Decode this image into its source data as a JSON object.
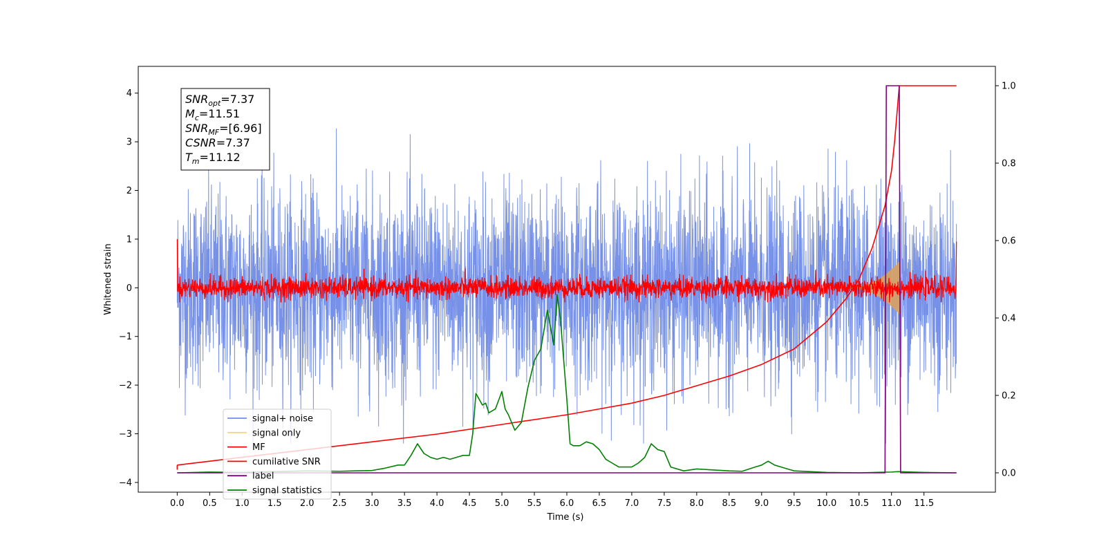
{
  "chart_data": {
    "type": "line",
    "xlabel": "Time (s)",
    "ylabel": "Whitened strain",
    "xlim": [
      -0.6,
      12.6
    ],
    "ylim": [
      -4.2,
      4.55
    ],
    "y2lim": [
      -0.05,
      1.05
    ],
    "x_ticks": [
      "0.0",
      "0.5",
      "1.0",
      "1.5",
      "2.0",
      "2.5",
      "3.0",
      "3.5",
      "4.0",
      "4.5",
      "5.0",
      "5.5",
      "6.0",
      "6.5",
      "7.0",
      "7.5",
      "8.0",
      "8.5",
      "9.0",
      "9.5",
      "10.0",
      "10.5",
      "11.0",
      "11.5"
    ],
    "y_ticks": [
      "−4",
      "−3",
      "−2",
      "−1",
      "0",
      "1",
      "2",
      "3",
      "4"
    ],
    "y2_ticks": [
      "0.0",
      "0.2",
      "0.4",
      "0.6",
      "0.8",
      "1.0"
    ],
    "legend": {
      "placement": "lower-left",
      "entries": [
        {
          "label": "signal+ noise",
          "color": "#6f8be6"
        },
        {
          "label": "signal only",
          "color": "#f5d28a"
        },
        {
          "label": "MF",
          "color": "#ff0000"
        },
        {
          "label": "cumilative SNR",
          "color": "#ff0000"
        },
        {
          "label": "label",
          "color": "#800080"
        },
        {
          "label": "signal statistics",
          "color": "#008000"
        }
      ]
    },
    "annotation": {
      "lines": [
        {
          "main": "SNR",
          "sub": "opt",
          "rest": "=7.37"
        },
        {
          "main": "M",
          "sub": "c",
          "rest": "=11.51"
        },
        {
          "main": "SNR",
          "sub": "MF",
          "rest": "=[6.96]"
        },
        {
          "main": "CSNR",
          "sub": "",
          "rest": "=7.37"
        },
        {
          "main": "T",
          "sub": "m",
          "rest": "=11.12"
        }
      ]
    },
    "series": [
      {
        "name": "signal+ noise",
        "axis": "left",
        "style": "noise",
        "x_range": [
          0.0,
          12.0
        ],
        "amplitude_range": [
          -3.2,
          4.15
        ]
      },
      {
        "name": "signal only",
        "axis": "left",
        "style": "envelope",
        "x_range": [
          10.3,
          11.12
        ],
        "peak_amplitude": 0.55
      },
      {
        "name": "MF",
        "axis": "left",
        "style": "noise-small",
        "x_range": [
          0.0,
          12.0
        ],
        "amplitude_range": [
          -0.3,
          0.45
        ]
      },
      {
        "name": "cumilative SNR",
        "axis": "right",
        "x": [
          0.0,
          0.5,
          1.0,
          2.0,
          3.0,
          4.0,
          5.0,
          6.0,
          6.5,
          7.0,
          7.5,
          8.0,
          8.5,
          9.0,
          9.5,
          10.0,
          10.3,
          10.5,
          10.7,
          10.9,
          11.0,
          11.05,
          11.12,
          11.5,
          12.0
        ],
        "y": [
          0.02,
          0.03,
          0.04,
          0.06,
          0.08,
          0.1,
          0.125,
          0.15,
          0.165,
          0.18,
          0.2,
          0.225,
          0.25,
          0.28,
          0.32,
          0.39,
          0.45,
          0.5,
          0.58,
          0.69,
          0.78,
          0.86,
          1.0,
          1.0,
          1.0
        ]
      },
      {
        "name": "label",
        "axis": "right",
        "x": [
          0.0,
          10.9,
          10.92,
          11.12,
          11.14,
          12.0
        ],
        "y": [
          0.0,
          0.0,
          1.0,
          1.0,
          0.0,
          0.0
        ]
      },
      {
        "name": "signal statistics",
        "axis": "right",
        "x": [
          0.0,
          0.5,
          1.0,
          1.5,
          2.0,
          2.5,
          3.0,
          3.2,
          3.4,
          3.5,
          3.6,
          3.7,
          3.8,
          3.9,
          4.0,
          4.1,
          4.2,
          4.3,
          4.4,
          4.5,
          4.55,
          4.6,
          4.7,
          4.75,
          4.8,
          4.9,
          5.0,
          5.05,
          5.1,
          5.2,
          5.3,
          5.4,
          5.5,
          5.6,
          5.7,
          5.8,
          5.85,
          5.9,
          6.0,
          6.05,
          6.1,
          6.2,
          6.3,
          6.4,
          6.5,
          6.6,
          6.7,
          6.8,
          7.0,
          7.1,
          7.2,
          7.3,
          7.4,
          7.5,
          7.6,
          7.8,
          8.0,
          8.2,
          8.5,
          8.7,
          8.9,
          9.0,
          9.1,
          9.2,
          9.3,
          9.5,
          10.0,
          10.5,
          11.0,
          11.1,
          11.5,
          12.0
        ],
        "y": [
          0.0,
          0.002,
          0.001,
          0.003,
          0.005,
          0.004,
          0.006,
          0.012,
          0.02,
          0.02,
          0.045,
          0.075,
          0.05,
          0.04,
          0.035,
          0.04,
          0.035,
          0.04,
          0.045,
          0.045,
          0.1,
          0.205,
          0.175,
          0.18,
          0.155,
          0.165,
          0.21,
          0.165,
          0.15,
          0.11,
          0.13,
          0.22,
          0.29,
          0.32,
          0.42,
          0.33,
          0.46,
          0.4,
          0.19,
          0.075,
          0.07,
          0.07,
          0.08,
          0.075,
          0.06,
          0.035,
          0.025,
          0.015,
          0.015,
          0.025,
          0.04,
          0.075,
          0.06,
          0.055,
          0.015,
          0.005,
          0.01,
          0.008,
          0.005,
          0.004,
          0.015,
          0.02,
          0.03,
          0.02,
          0.015,
          0.005,
          0.001,
          0.0,
          0.002,
          0.003,
          0.001,
          0.0
        ]
      }
    ]
  }
}
